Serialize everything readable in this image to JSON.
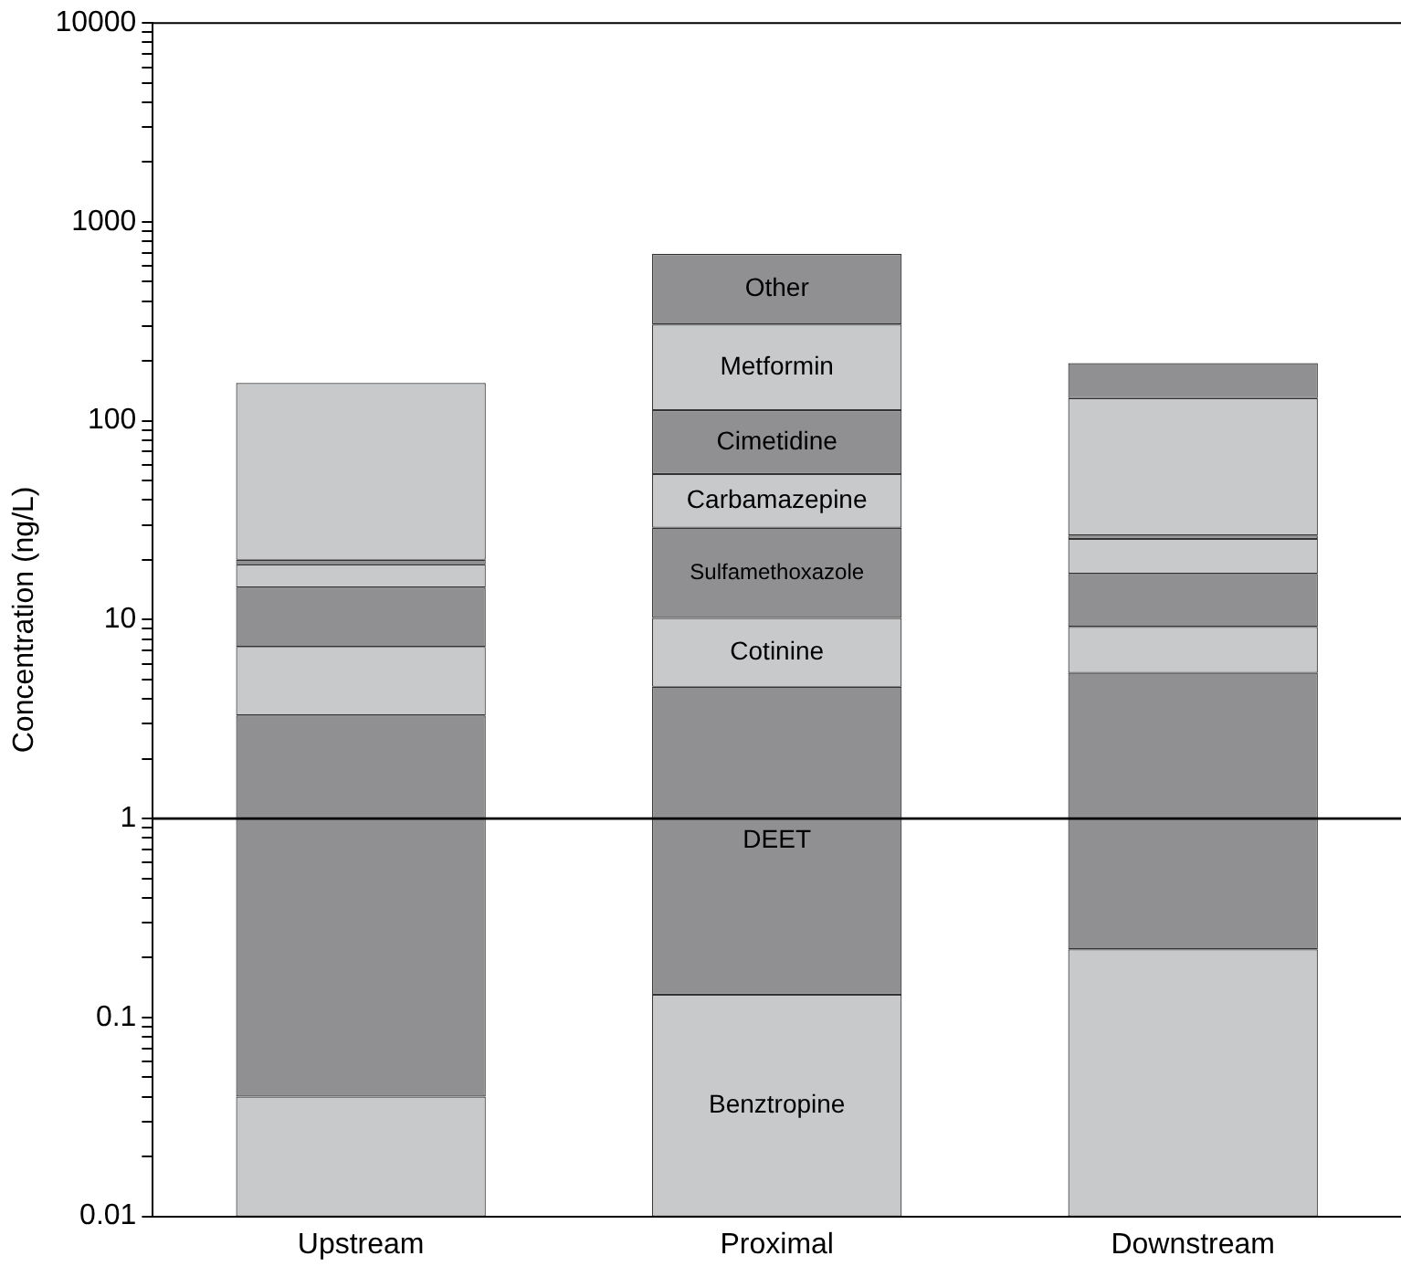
{
  "chart_data": {
    "type": "bar",
    "stacked": true,
    "log": "y",
    "ylabel": "Concentration (ng/L)",
    "categories": [
      "Upstream",
      "Proximal",
      "Downstream"
    ],
    "series": [
      {
        "name": "Benztropine",
        "color": "#c8c9cb",
        "values": [
          0.04,
          0.13,
          0.22
        ]
      },
      {
        "name": "DEET",
        "color": "#909093",
        "values": [
          3.26,
          4.47,
          5.18
        ]
      },
      {
        "name": "Cotinine",
        "color": "#c8c9cb",
        "values": [
          4.0,
          5.6,
          3.8
        ]
      },
      {
        "name": "Sulfamethoxazole",
        "color": "#909093",
        "values": [
          7.2,
          18.8,
          7.8
        ]
      },
      {
        "name": "Carbamazepine",
        "color": "#c8c9cb",
        "values": [
          4.5,
          25,
          8.5
        ]
      },
      {
        "name": "Cimetidine",
        "color": "#909093",
        "values": [
          1.0,
          59,
          1.0
        ]
      },
      {
        "name": "Metformin",
        "color": "#c8c9cb",
        "values": [
          135,
          192,
          103.5
        ]
      },
      {
        "name": "Other",
        "color": "#909093",
        "values": [
          null,
          385,
          65
        ]
      }
    ],
    "ylim": [
      0.01,
      10000
    ],
    "yticks": [
      0.01,
      {
        "value": 0.02,
        "label": null
      },
      {
        "value": 0.03,
        "label": null
      },
      {
        "value": 0.04,
        "label": null
      },
      {
        "value": 0.05,
        "label": null
      },
      {
        "value": 0.06,
        "label": null
      },
      {
        "value": 0.07,
        "label": null
      },
      {
        "value": 0.08,
        "label": null
      },
      {
        "value": 0.09,
        "label": null
      },
      0.1,
      {
        "value": 0.2,
        "label": null
      },
      {
        "value": 0.3,
        "label": null
      },
      {
        "value": 0.4,
        "label": null
      },
      {
        "value": 0.5,
        "label": null
      },
      {
        "value": 0.6,
        "label": null
      },
      {
        "value": 0.7,
        "label": null
      },
      {
        "value": 0.8,
        "label": null
      },
      {
        "value": 0.9,
        "label": null
      },
      1,
      {
        "value": 2,
        "label": null
      },
      {
        "value": 3,
        "label": null
      },
      {
        "value": 4,
        "label": null
      },
      {
        "value": 5,
        "label": null
      },
      {
        "value": 6,
        "label": null
      },
      {
        "value": 7,
        "label": null
      },
      {
        "value": 8,
        "label": null
      },
      {
        "value": 9,
        "label": null
      },
      10,
      {
        "value": 20,
        "label": null
      },
      {
        "value": 30,
        "label": null
      },
      {
        "value": 40,
        "label": null
      },
      {
        "value": 50,
        "label": null
      },
      {
        "value": 60,
        "label": null
      },
      {
        "value": 70,
        "label": null
      },
      {
        "value": 80,
        "label": null
      },
      {
        "value": 90,
        "label": null
      },
      100,
      {
        "value": 200,
        "label": null
      },
      {
        "value": 300,
        "label": null
      },
      {
        "value": 400,
        "label": null
      },
      {
        "value": 500,
        "label": null
      },
      {
        "value": 600,
        "label": null
      },
      {
        "value": 700,
        "label": null
      },
      {
        "value": 800,
        "label": null
      },
      {
        "value": 900,
        "label": null
      },
      1000,
      {
        "value": 2000,
        "label": null
      },
      {
        "value": 3000,
        "label": null
      },
      {
        "value": 4000,
        "label": null
      },
      {
        "value": 5000,
        "label": null
      },
      {
        "value": 6000,
        "label": null
      },
      {
        "value": 7000,
        "label": null
      },
      {
        "value": 8000,
        "label": null
      },
      {
        "value": 9000,
        "label": null
      },
      10000
    ],
    "ref_lines": [
      {
        "axis": "y",
        "value": 1,
        "color": "#000000"
      }
    ],
    "grid": false,
    "legend": false
  }
}
